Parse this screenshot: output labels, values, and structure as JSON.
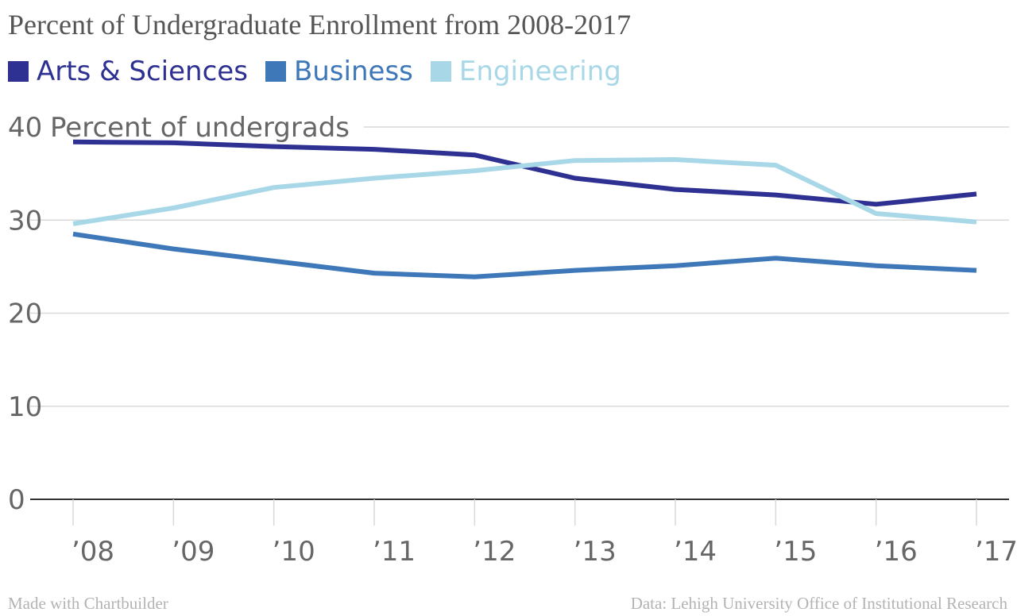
{
  "chart_data": {
    "type": "line",
    "title": "Percent of Undergraduate Enrollment from 2008-2017",
    "ylabel": "Percent of undergrads",
    "xlabel": "",
    "x": [
      "’08",
      "’09",
      "’10",
      "’11",
      "’12",
      "’13",
      "’14",
      "’15",
      "’16",
      "’17"
    ],
    "ylim": [
      0,
      40
    ],
    "yticks": [
      0,
      10,
      20,
      30,
      40
    ],
    "grid": true,
    "legend_position": "top-left",
    "series": [
      {
        "name": "Arts & Sciences",
        "color": "#2e3192",
        "values": [
          38.4,
          38.3,
          37.9,
          37.6,
          37.0,
          34.5,
          33.3,
          32.7,
          31.7,
          32.8
        ]
      },
      {
        "name": "Business",
        "color": "#3f78b8",
        "values": [
          28.5,
          26.9,
          25.6,
          24.3,
          23.9,
          24.6,
          25.1,
          25.9,
          25.1,
          24.6
        ]
      },
      {
        "name": "Engineering",
        "color": "#a8d8e8",
        "values": [
          29.6,
          31.3,
          33.5,
          34.5,
          35.3,
          36.4,
          36.5,
          35.9,
          30.7,
          29.8
        ]
      }
    ]
  },
  "footer": {
    "credit": "Made with Chartbuilder",
    "source": "Data: Lehigh University Office of Institutional Research"
  }
}
